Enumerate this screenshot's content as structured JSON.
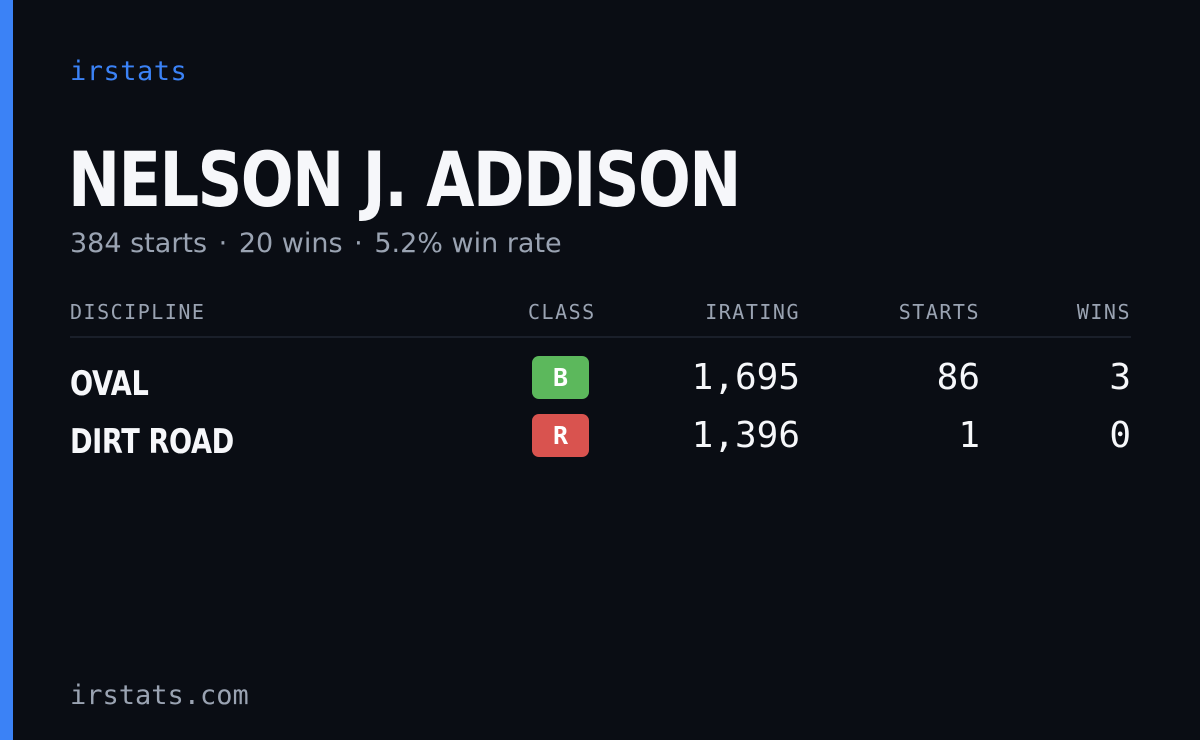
{
  "brand": "irstats",
  "driver": {
    "name": "NELSON J. ADDISON",
    "starts_text": "384 starts",
    "wins_text": "20 wins",
    "win_rate_text": "5.2% win rate",
    "separator": "·"
  },
  "table": {
    "headers": {
      "discipline": "DISCIPLINE",
      "class": "CLASS",
      "irating": "IRATING",
      "starts": "STARTS",
      "wins": "WINS"
    },
    "rows": [
      {
        "discipline": "OVAL",
        "class": "B",
        "class_color": "#5cb85c",
        "irating": "1,695",
        "starts": "86",
        "wins": "3"
      },
      {
        "discipline": "DIRT ROAD",
        "class": "R",
        "class_color": "#d9534f",
        "irating": "1,396",
        "starts": "1",
        "wins": "0"
      }
    ]
  },
  "footer": "irstats.com",
  "colors": {
    "accent": "#3b82f6",
    "background": "#0a0d14",
    "muted_text": "#9aa3b2"
  }
}
